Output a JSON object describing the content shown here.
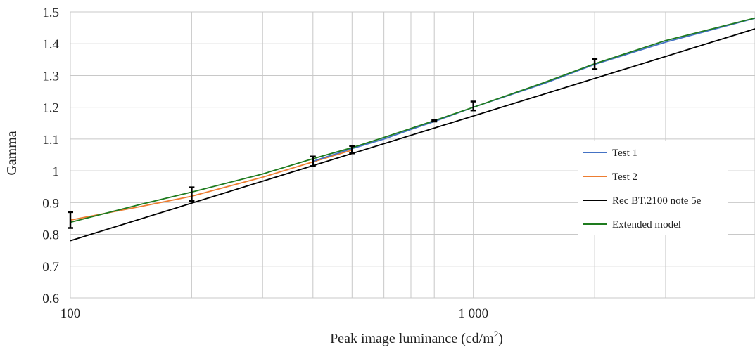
{
  "chart_data": {
    "type": "line",
    "title": "",
    "xlabel": "Peak image luminance (cd/m",
    "xlabel_superscript": "2",
    "xlabel_suffix": ")",
    "ylabel": "Gamma",
    "xscale": "log",
    "xlim": [
      100,
      5000
    ],
    "ylim": [
      0.6,
      1.5
    ],
    "grid": true,
    "legend_position": "right",
    "x_tick_values": [
      100,
      1000
    ],
    "x_tick_labels": [
      "100",
      "1 000"
    ],
    "y_tick_values": [
      0.6,
      0.7,
      0.8,
      0.9,
      1.0,
      1.1,
      1.2,
      1.3,
      1.4,
      1.5
    ],
    "y_tick_labels": [
      "0.6",
      "0.7",
      "0.8",
      "0.9",
      "1",
      "1.1",
      "1.2",
      "1.3",
      "1.4",
      "1.5"
    ],
    "series": [
      {
        "name": "Test 1",
        "color": "#4472c4",
        "x": [
          400,
          500,
          600,
          700,
          800,
          1000,
          1500,
          2000,
          3000,
          5000
        ],
        "y": [
          1.03,
          1.07,
          1.1,
          1.13,
          1.155,
          1.2,
          1.275,
          1.335,
          1.405,
          1.48
        ]
      },
      {
        "name": "Test 2",
        "color": "#ed7d31",
        "x": [
          100,
          150,
          200,
          300,
          400,
          500
        ],
        "y": [
          0.845,
          0.888,
          0.92,
          0.98,
          1.028,
          1.065
        ]
      },
      {
        "name": "Rec BT.2100 note 5e",
        "color": "#000000",
        "x": [
          100,
          5000
        ],
        "y": [
          0.78,
          1.447
        ]
      },
      {
        "name": "Extended model",
        "color": "#1e7b1e",
        "x": [
          100,
          150,
          200,
          300,
          400,
          500,
          600,
          800,
          1000,
          1500,
          2000,
          3000,
          5000
        ],
        "y": [
          0.838,
          0.895,
          0.933,
          0.99,
          1.038,
          1.073,
          1.105,
          1.158,
          1.2,
          1.278,
          1.337,
          1.41,
          1.481
        ]
      }
    ],
    "error_bars": [
      {
        "x": 100,
        "low": 0.82,
        "high": 0.87
      },
      {
        "x": 200,
        "low": 0.905,
        "high": 0.948
      },
      {
        "x": 400,
        "low": 1.015,
        "high": 1.045
      },
      {
        "x": 500,
        "low": 1.055,
        "high": 1.078
      },
      {
        "x": 800,
        "low": 1.155,
        "high": 1.16
      },
      {
        "x": 1000,
        "low": 1.19,
        "high": 1.218
      },
      {
        "x": 2000,
        "low": 1.32,
        "high": 1.352
      }
    ]
  }
}
